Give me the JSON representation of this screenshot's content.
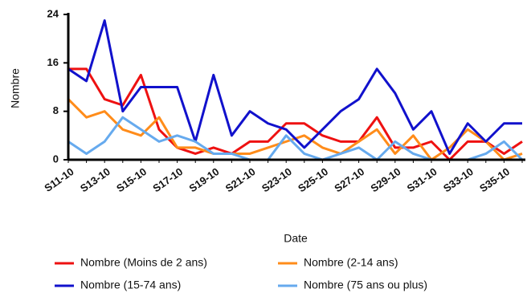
{
  "chart_data": {
    "type": "line",
    "x_label": "Date",
    "y_label": "Nombre",
    "categories": [
      "S11-10",
      null,
      "S13-10",
      null,
      "S15-10",
      null,
      "S17-10",
      null,
      "S19-10",
      null,
      "S21-10",
      null,
      "S23-10",
      null,
      "S25-10",
      null,
      "S27-10",
      null,
      "S29-10",
      null,
      "S31-10",
      null,
      "S33-10",
      null,
      "S35-10",
      null
    ],
    "series": [
      {
        "name": "Nombre (Moins de 2 ans)",
        "color": "#ee1111",
        "values": [
          15,
          15,
          10,
          9,
          14,
          5,
          2,
          1,
          2,
          1,
          3,
          3,
          6,
          6,
          4,
          3,
          3,
          7,
          2,
          2,
          3,
          0,
          3,
          3,
          1,
          3
        ]
      },
      {
        "name": "Nombre (2-14 ans)",
        "color": "#ff8c1a",
        "values": [
          10,
          7,
          8,
          5,
          4,
          7,
          2,
          2,
          1,
          1,
          1,
          2,
          3,
          4,
          2,
          1,
          3,
          5,
          1,
          4,
          0,
          2,
          5,
          3,
          0,
          1
        ]
      },
      {
        "name": "Nombre (15-74 ans)",
        "color": "#1111cc",
        "values": [
          15,
          13,
          23,
          8,
          12,
          12,
          12,
          3,
          14,
          4,
          8,
          6,
          5,
          2,
          5,
          8,
          10,
          15,
          11,
          5,
          8,
          1,
          6,
          3,
          6,
          6
        ]
      },
      {
        "name": "Nombre (75 ans ou plus)",
        "color": "#66aaee",
        "values": [
          3,
          1,
          3,
          7,
          5,
          3,
          4,
          3,
          1,
          1,
          0,
          0,
          4,
          1,
          0,
          1,
          2,
          0,
          3,
          1,
          0,
          0,
          0,
          1,
          3,
          0
        ]
      }
    ],
    "ylim": [
      0,
      24
    ],
    "yticks": [
      0,
      8,
      16,
      24
    ],
    "grid": false,
    "legend": "bottom"
  }
}
